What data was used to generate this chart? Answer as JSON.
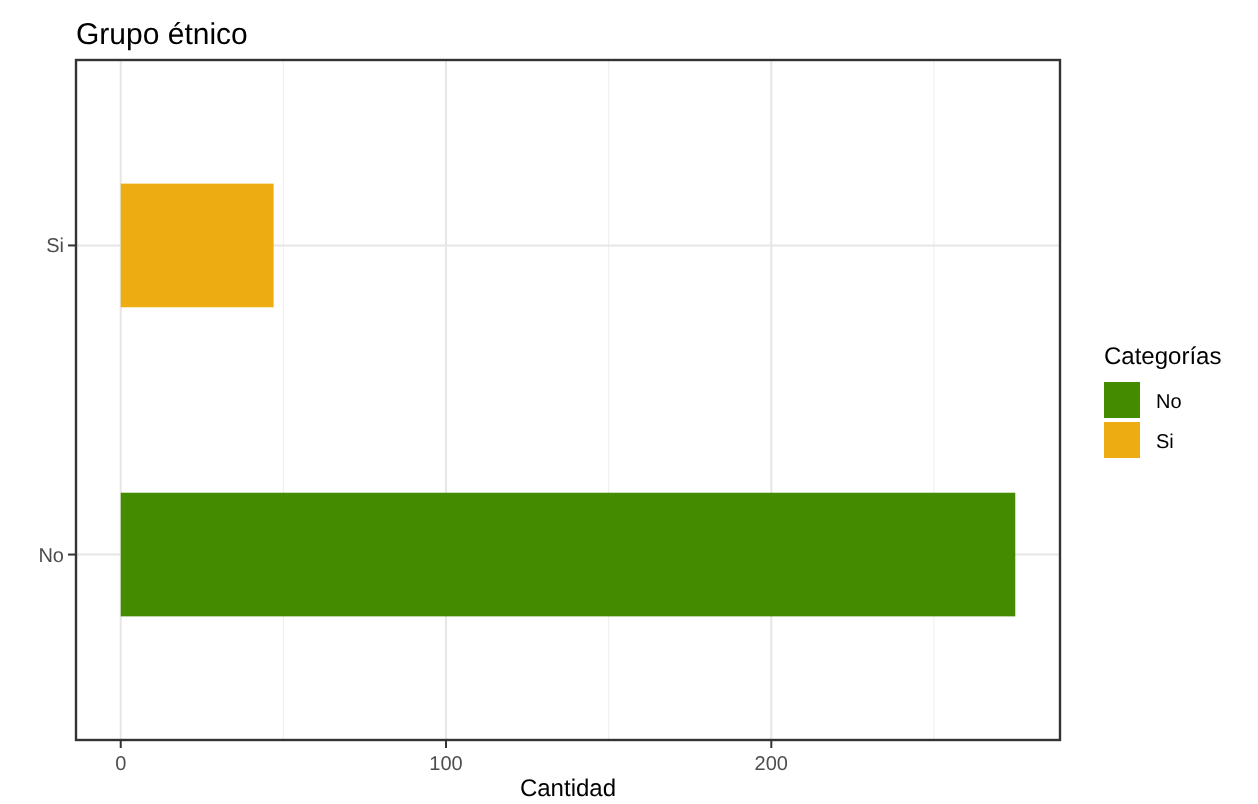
{
  "chart_data": {
    "type": "bar",
    "orientation": "horizontal",
    "title": "Grupo étnico",
    "xlabel": "Cantidad",
    "legend_title": "Categorías",
    "categories": [
      "Si",
      "No"
    ],
    "series": [
      {
        "name": "No",
        "color": "#458b00",
        "values": [
          null,
          275
        ]
      },
      {
        "name": "Si",
        "color": "#edac12",
        "values": [
          47,
          null
        ]
      }
    ],
    "xlim": [
      -13.75,
      288.75
    ],
    "xticks": [
      0,
      100,
      200
    ],
    "grid": true,
    "legend": "right"
  }
}
